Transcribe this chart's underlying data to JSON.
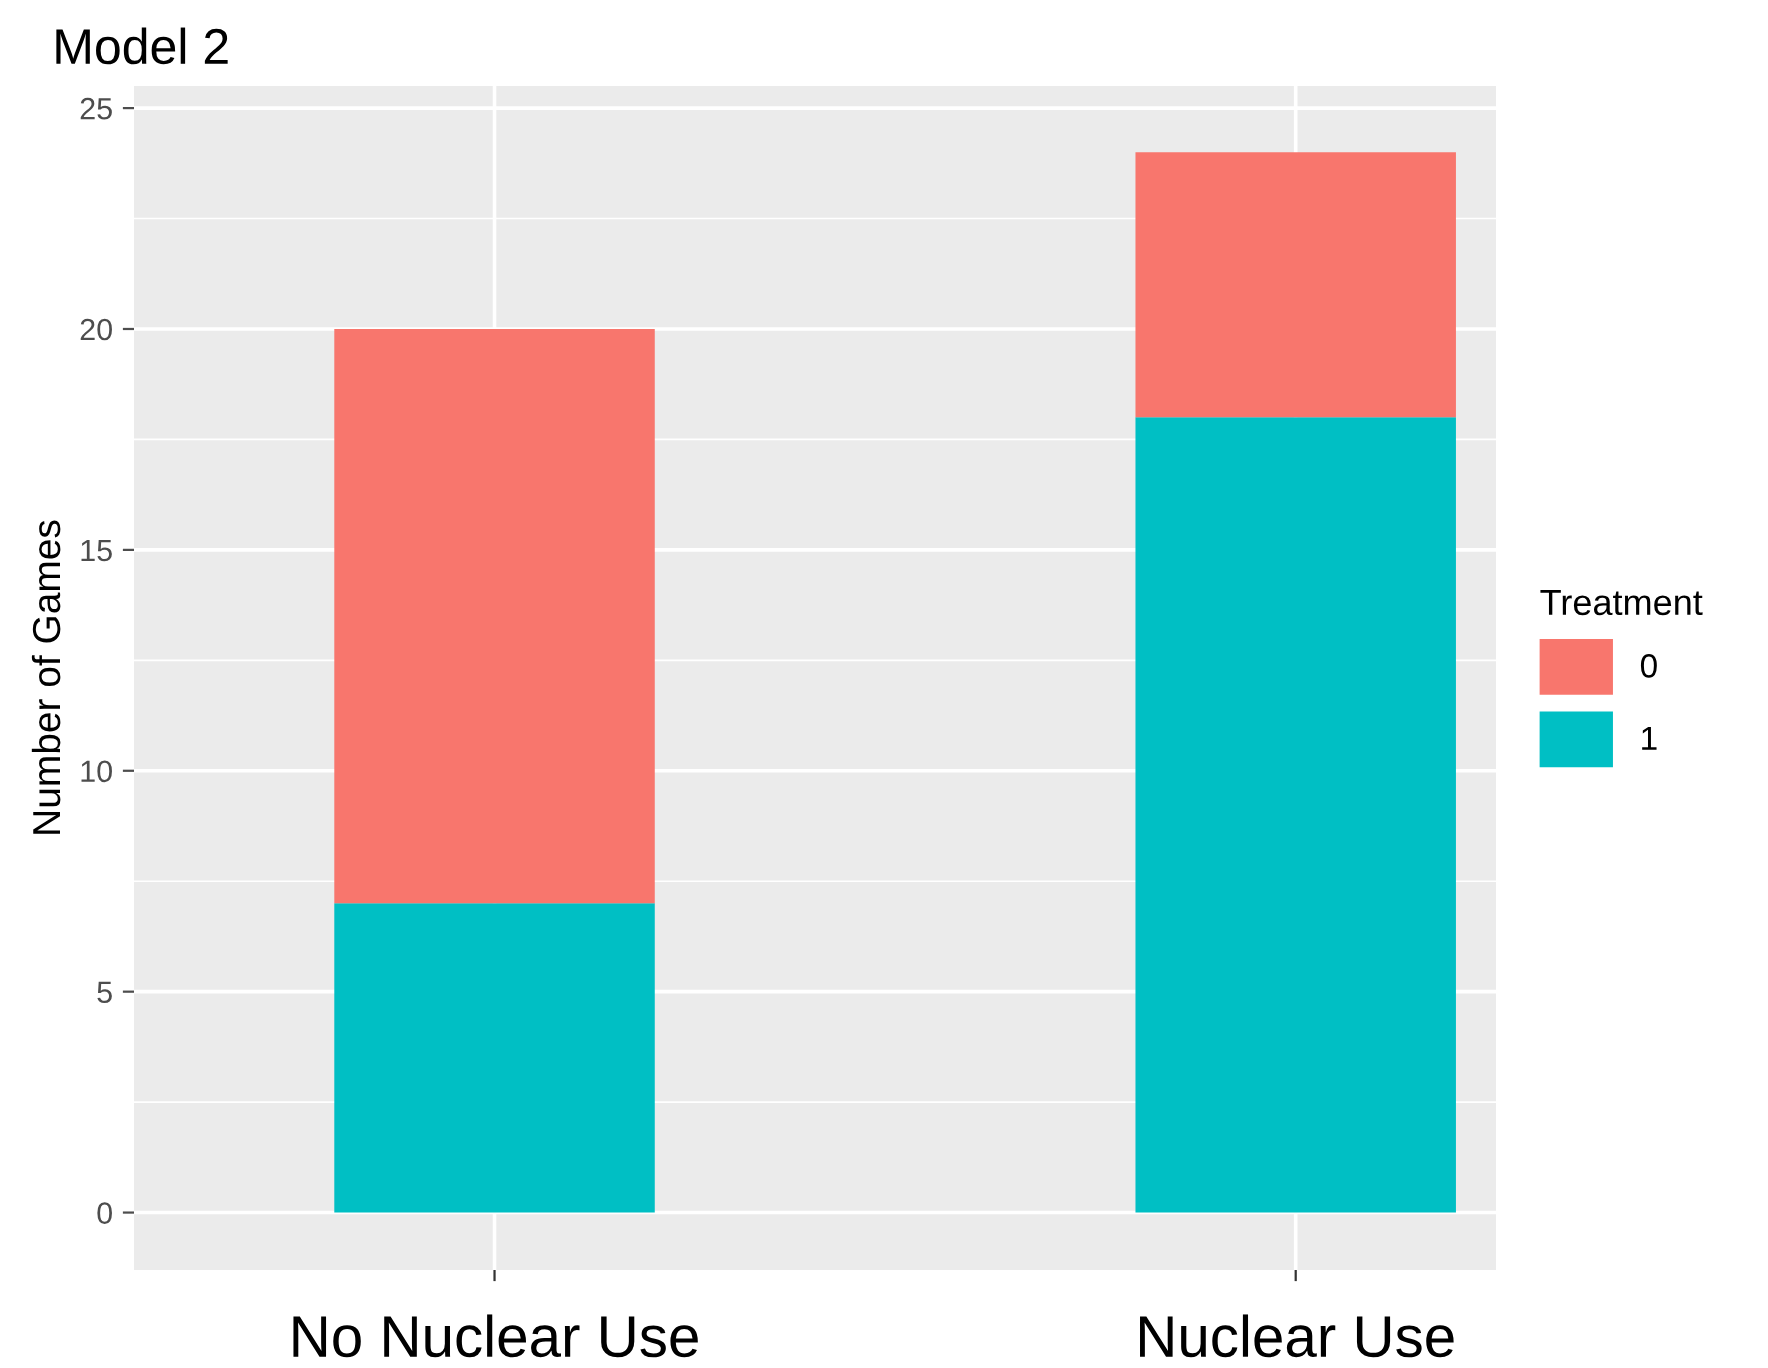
{
  "chart_data": {
    "type": "bar",
    "title": "Model 2",
    "ylabel": "Number of Games",
    "legend_title": "Treatment",
    "categories": [
      "No Nuclear Use",
      "Nuclear Use"
    ],
    "series": [
      {
        "name": "1",
        "color": "#00bfc4",
        "values": [
          7,
          18
        ]
      },
      {
        "name": "0",
        "color": "#f8766d",
        "values": [
          13,
          6
        ]
      }
    ],
    "stacked": true,
    "ylim": [
      -1.3,
      25.5
    ],
    "yticks": [
      0,
      5,
      10,
      15,
      20,
      25
    ],
    "grid": true,
    "legend": "right"
  }
}
